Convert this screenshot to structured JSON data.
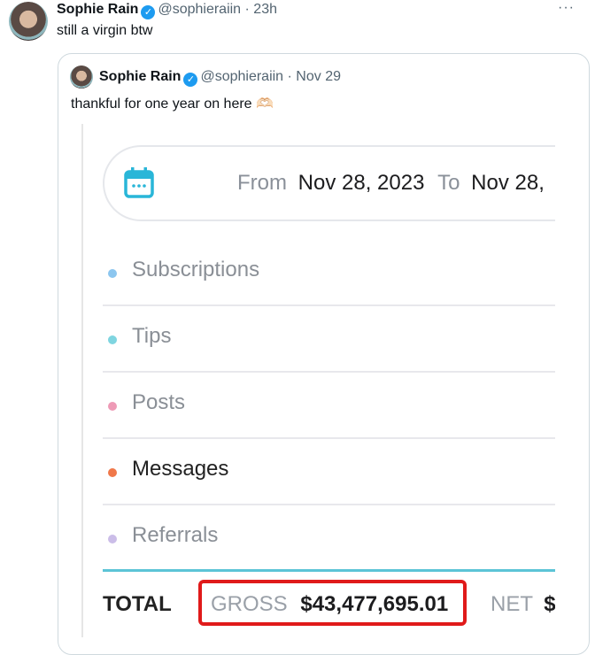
{
  "tweet": {
    "name": "Sophie Rain",
    "handle": "@sophieraiin",
    "time": "· 23h",
    "text": "still a virgin btw",
    "more": "···"
  },
  "quoted": {
    "name": "Sophie Rain",
    "handle": "@sophieraiin",
    "time": "· Nov 29",
    "text": "thankful for one year on here 🫶🏻"
  },
  "earnings": {
    "from_label": "From",
    "from_date": "Nov 28, 2023",
    "to_label": "To",
    "to_date": "Nov 28,",
    "rows": [
      {
        "label": "Subscriptions",
        "color": "#8cc6ef"
      },
      {
        "label": "Tips",
        "color": "#7fd5e0"
      },
      {
        "label": "Posts",
        "color": "#ee9ab6"
      },
      {
        "label": "Messages",
        "color": "#f0784a"
      },
      {
        "label": "Referrals",
        "color": "#cbbde8"
      }
    ],
    "total_label": "TOTAL",
    "gross_label": "GROSS",
    "gross_value": "$43,477,695.01",
    "net_label": "NET",
    "net_value": "$"
  },
  "colors": {
    "accent": "#1d9bf0",
    "highlight": "#e01a1a",
    "teal": "#29b6d8"
  }
}
